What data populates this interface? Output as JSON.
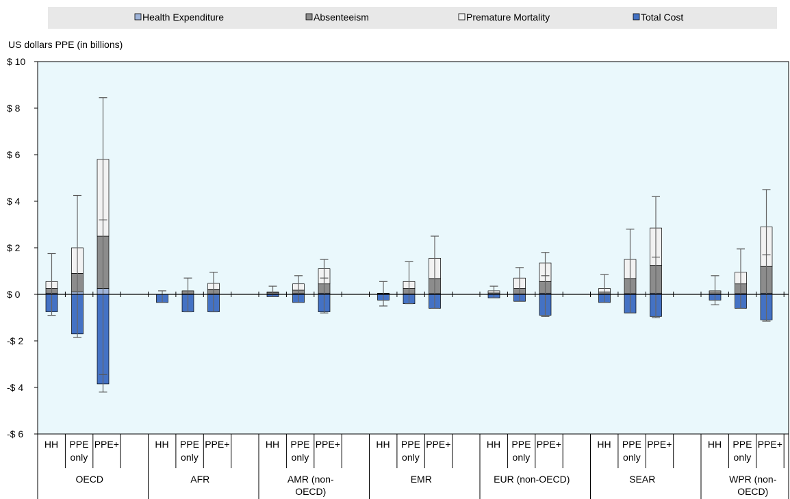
{
  "chart_data": {
    "type": "bar",
    "stacked": true,
    "ylabel": "US dollars PPE (in billions)",
    "ylim": [
      -6,
      10
    ],
    "yticks": [
      10,
      8,
      6,
      4,
      2,
      0,
      -2,
      -4,
      -6
    ],
    "ytick_labels": [
      "$ 10",
      "$ 8",
      "$ 6",
      "$ 4",
      "$ 2",
      "$ 0",
      "-$ 2",
      "-$ 4",
      "-$ 6"
    ],
    "grid": false,
    "legend_position": "top",
    "legend": [
      {
        "name": "Health Expenditure",
        "color": "#9fb4d9"
      },
      {
        "name": "Absenteeism",
        "color": "#8c8c8c"
      },
      {
        "name": "Premature Mortality",
        "color": "#f2f2f2"
      },
      {
        "name": "Total Cost",
        "color": "#4472c4"
      }
    ],
    "colors": {
      "plot_background": "#eaf8fc",
      "legend_background": "#e8e8e8"
    },
    "regions": [
      {
        "name": "OECD",
        "bars": [
          {
            "label": "HH",
            "health": 0.05,
            "absenteeism": 0.2,
            "mortality": 0.3,
            "total": -0.75,
            "err_up": 1.75,
            "err_down": -0.9
          },
          {
            "label": "PPE only",
            "health": 0.1,
            "absenteeism": 0.8,
            "mortality": 1.1,
            "total": -1.7,
            "err_up": 4.25,
            "err_down": -1.85
          },
          {
            "label": "PPE+",
            "health": 0.25,
            "absenteeism": 2.25,
            "mortality": 3.3,
            "total": -3.85,
            "err_up": 8.45,
            "err_down": -4.2,
            "err_top_low": 3.2,
            "err_bot_high": -3.45
          }
        ]
      },
      {
        "name": "AFR",
        "bars": [
          {
            "label": "HH",
            "health": 0.0,
            "absenteeism": 0.0,
            "mortality": 0.0,
            "total": -0.35,
            "err_up": 0.15,
            "err_down": -0.35
          },
          {
            "label": "PPE only",
            "health": 0.02,
            "absenteeism": 0.13,
            "mortality": 0.0,
            "total": -0.75,
            "err_up": 0.7,
            "err_down": -0.75
          },
          {
            "label": "PPE+",
            "health": 0.02,
            "absenteeism": 0.2,
            "mortality": 0.25,
            "total": -0.75,
            "err_up": 0.95,
            "err_down": -0.75
          }
        ]
      },
      {
        "name": "AMR (non-OECD)",
        "bars": [
          {
            "label": "HH",
            "health": 0.02,
            "absenteeism": 0.05,
            "mortality": 0.03,
            "total": -0.1,
            "err_up": 0.35,
            "err_down": -0.1
          },
          {
            "label": "PPE only",
            "health": 0.03,
            "absenteeism": 0.15,
            "mortality": 0.27,
            "total": -0.35,
            "err_up": 0.8,
            "err_down": -0.35
          },
          {
            "label": "PPE+",
            "health": 0.05,
            "absenteeism": 0.4,
            "mortality": 0.65,
            "total": -0.75,
            "err_up": 1.5,
            "err_down": -0.8,
            "err_top_low": 0.7
          }
        ]
      },
      {
        "name": "EMR",
        "bars": [
          {
            "label": "HH",
            "health": 0.01,
            "absenteeism": 0.02,
            "mortality": 0.02,
            "total": -0.25,
            "err_up": 0.55,
            "err_down": -0.5
          },
          {
            "label": "PPE only",
            "health": 0.02,
            "absenteeism": 0.23,
            "mortality": 0.3,
            "total": -0.4,
            "err_up": 1.4,
            "err_down": -0.4
          },
          {
            "label": "PPE+",
            "health": 0.03,
            "absenteeism": 0.65,
            "mortality": 0.87,
            "total": -0.6,
            "err_up": 2.5,
            "err_down": -0.6
          }
        ]
      },
      {
        "name": "EUR (non-OECD)",
        "bars": [
          {
            "label": "HH",
            "health": 0.01,
            "absenteeism": 0.05,
            "mortality": 0.09,
            "total": -0.15,
            "err_up": 0.35,
            "err_down": -0.15
          },
          {
            "label": "PPE only",
            "health": 0.02,
            "absenteeism": 0.23,
            "mortality": 0.45,
            "total": -0.3,
            "err_up": 1.15,
            "err_down": -0.3
          },
          {
            "label": "PPE+",
            "health": 0.05,
            "absenteeism": 0.5,
            "mortality": 0.8,
            "total": -0.9,
            "err_up": 1.8,
            "err_down": -0.95,
            "err_top_low": 0.8
          }
        ]
      },
      {
        "name": "SEAR",
        "bars": [
          {
            "label": "HH",
            "health": 0.02,
            "absenteeism": 0.08,
            "mortality": 0.15,
            "total": -0.35,
            "err_up": 0.85,
            "err_down": -0.35
          },
          {
            "label": "PPE only",
            "health": 0.03,
            "absenteeism": 0.65,
            "mortality": 0.82,
            "total": -0.8,
            "err_up": 2.8,
            "err_down": -0.8
          },
          {
            "label": "PPE+",
            "health": 0.05,
            "absenteeism": 1.2,
            "mortality": 1.6,
            "total": -0.95,
            "err_up": 4.2,
            "err_down": -1.0,
            "err_top_low": 1.6
          }
        ]
      },
      {
        "name": "WPR (non-OECD)",
        "bars": [
          {
            "label": "HH",
            "health": 0.02,
            "absenteeism": 0.08,
            "mortality": 0.05,
            "total": -0.25,
            "err_up": 0.8,
            "err_down": -0.45
          },
          {
            "label": "PPE only",
            "health": 0.03,
            "absenteeism": 0.42,
            "mortality": 0.5,
            "total": -0.6,
            "err_up": 1.95,
            "err_down": -0.6
          },
          {
            "label": "PPE+",
            "health": 0.05,
            "absenteeism": 1.15,
            "mortality": 1.7,
            "total": -1.1,
            "err_up": 4.5,
            "err_down": -1.15,
            "err_top_low": 1.7
          }
        ]
      }
    ]
  }
}
